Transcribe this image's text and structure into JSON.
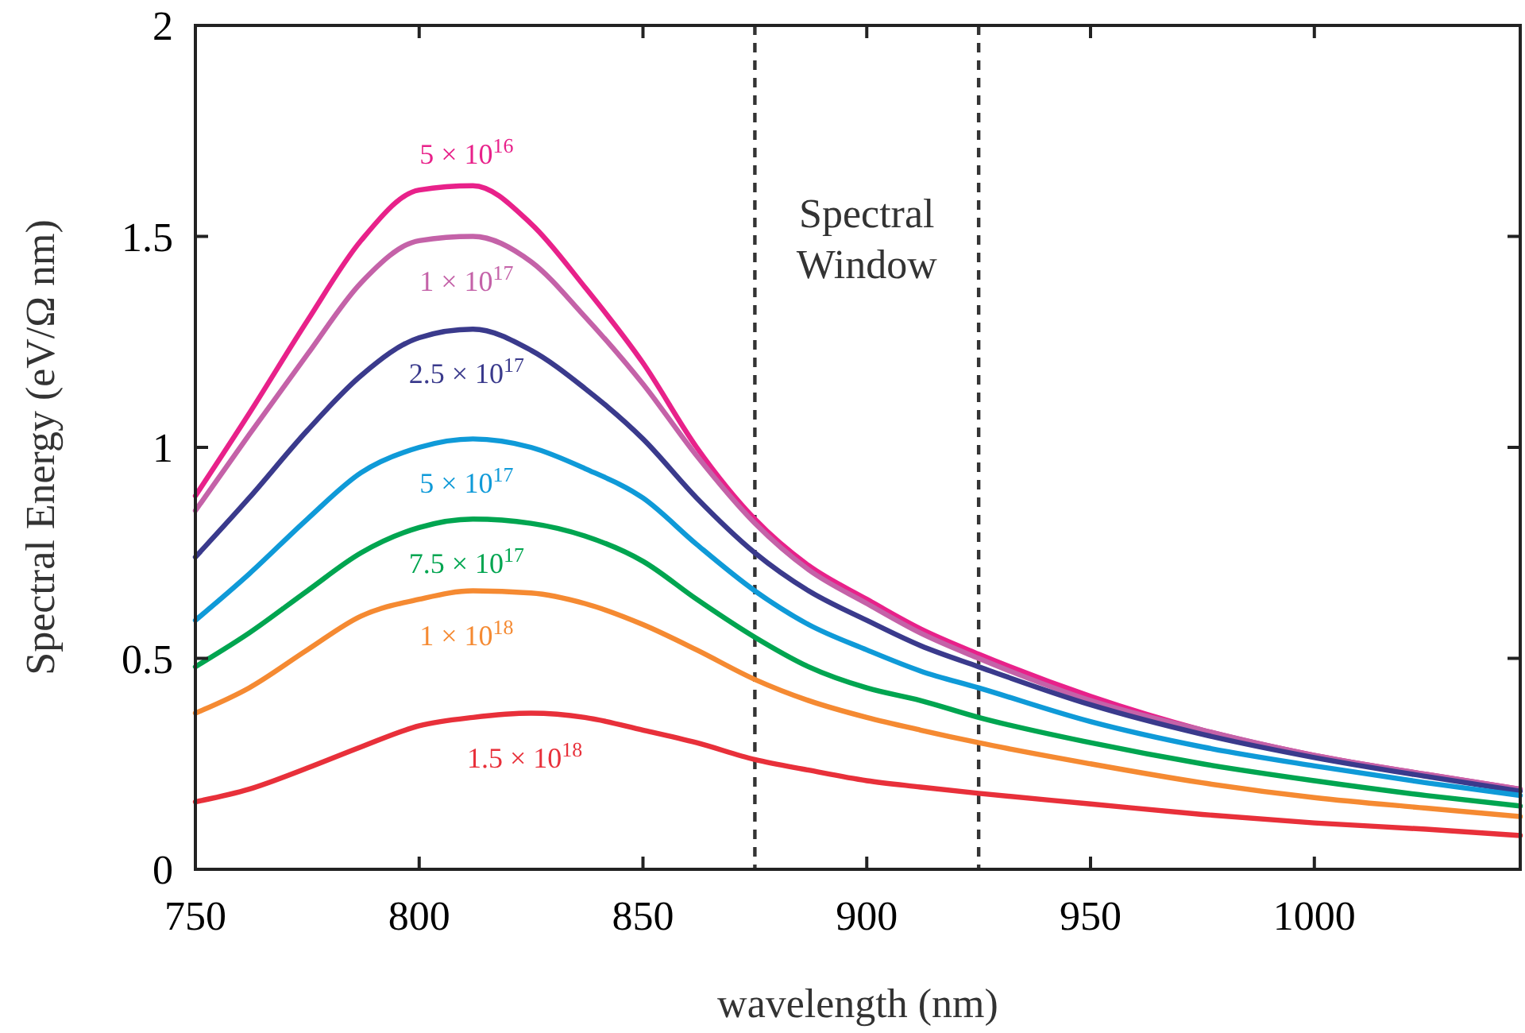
{
  "chart_data": {
    "type": "line",
    "xlabel": "wavelength (nm)",
    "ylabel": "Spectral Energy (eV/Ω nm)",
    "x": [
      750,
      762,
      775,
      787,
      800,
      812,
      825,
      837,
      850,
      862,
      875,
      887,
      900,
      912,
      925,
      950,
      975,
      1000,
      1025,
      1046
    ],
    "xlim": [
      750,
      1046
    ],
    "xticks": [
      750,
      800,
      850,
      900,
      950,
      1000
    ],
    "ylim": [
      0,
      2
    ],
    "yticks": [
      0,
      {
        "value": 0.5,
        "label": "0.5"
      },
      1,
      {
        "value": 1.5,
        "label": "1.5"
      },
      2
    ],
    "grid": false,
    "line_style": "solid",
    "marker": "none",
    "series": [
      {
        "name": "5 × 10$^{16}$",
        "color": "#e8218a",
        "values": [
          0.885,
          1.08,
          1.3,
          1.49,
          1.61,
          1.62,
          1.53,
          1.38,
          1.2,
          1.0,
          0.83,
          0.72,
          0.64,
          0.57,
          0.51,
          0.41,
          0.33,
          0.27,
          0.225,
          0.19
        ]
      },
      {
        "name": "1 × 10$^{17}$",
        "color": "#c462a8",
        "values": [
          0.85,
          1.03,
          1.22,
          1.39,
          1.49,
          1.5,
          1.44,
          1.31,
          1.15,
          0.98,
          0.82,
          0.71,
          0.63,
          0.56,
          0.5,
          0.4,
          0.33,
          0.27,
          0.225,
          0.19
        ]
      },
      {
        "name": "2.5 × 10$^{17}$",
        "color": "#3a3a8c",
        "values": [
          0.74,
          0.88,
          1.04,
          1.17,
          1.26,
          1.28,
          1.23,
          1.14,
          1.02,
          0.88,
          0.75,
          0.66,
          0.59,
          0.53,
          0.48,
          0.39,
          0.32,
          0.265,
          0.22,
          0.185
        ]
      },
      {
        "name": "5 × 10$^{17}$",
        "color": "#0f9ad8",
        "values": [
          0.59,
          0.7,
          0.83,
          0.94,
          1.0,
          1.02,
          1.0,
          0.95,
          0.88,
          0.77,
          0.66,
          0.58,
          0.52,
          0.47,
          0.43,
          0.35,
          0.29,
          0.245,
          0.205,
          0.175
        ]
      },
      {
        "name": "7.5 × 10$^{17}$",
        "color": "#00a550",
        "values": [
          0.48,
          0.56,
          0.66,
          0.75,
          0.81,
          0.83,
          0.82,
          0.79,
          0.73,
          0.64,
          0.55,
          0.48,
          0.43,
          0.4,
          0.36,
          0.3,
          0.25,
          0.21,
          0.175,
          0.15
        ]
      },
      {
        "name": "1 × 10$^{18}$",
        "color": "#f58a32",
        "values": [
          0.37,
          0.43,
          0.52,
          0.6,
          0.64,
          0.66,
          0.655,
          0.63,
          0.58,
          0.52,
          0.45,
          0.4,
          0.36,
          0.33,
          0.3,
          0.25,
          0.205,
          0.17,
          0.145,
          0.125
        ]
      },
      {
        "name": "1.5 × 10$^{18}$",
        "color": "#e8303a",
        "values": [
          0.16,
          0.19,
          0.24,
          0.29,
          0.34,
          0.36,
          0.37,
          0.36,
          0.33,
          0.3,
          0.26,
          0.235,
          0.21,
          0.195,
          0.18,
          0.155,
          0.13,
          0.11,
          0.095,
          0.08
        ]
      }
    ],
    "ref_lines": [
      {
        "axis": "x",
        "value": 875,
        "color": "#333333",
        "line_style": "dashed"
      },
      {
        "axis": "x",
        "value": 925,
        "color": "#333333",
        "line_style": "dashed"
      }
    ],
    "annotations": [
      "Spectral Window"
    ]
  }
}
